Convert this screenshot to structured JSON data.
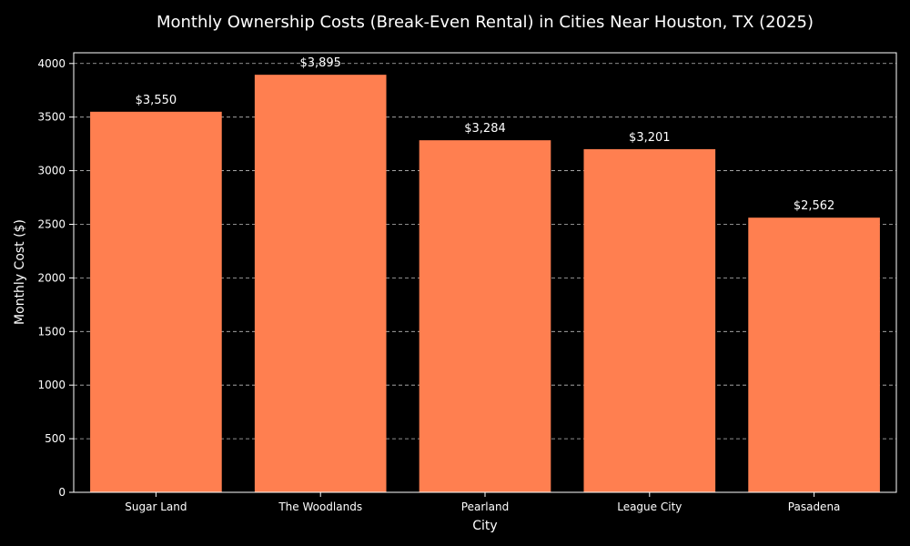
{
  "chart_data": {
    "type": "bar",
    "title": "Monthly Ownership Costs (Break-Even Rental) in Cities Near Houston, TX (2025)",
    "xlabel": "City",
    "ylabel": "Monthly Cost ($)",
    "categories": [
      "Sugar Land",
      "The Woodlands",
      "Pearland",
      "League City",
      "Pasadena"
    ],
    "values": [
      3550,
      3895,
      3284,
      3201,
      2562
    ],
    "value_labels": [
      "$3,550",
      "$3,895",
      "$3,284",
      "$3,201",
      "$2,562"
    ],
    "ylim": [
      0,
      4100
    ],
    "yticks": [
      0,
      500,
      1000,
      1500,
      2000,
      2500,
      3000,
      3500,
      4000
    ],
    "grid": "y-dashed",
    "colors": {
      "background": "#000000",
      "bar": "#ff7f50",
      "axis": "#ffffff",
      "grid": "#bbbbbb",
      "text": "#ffffff"
    }
  }
}
